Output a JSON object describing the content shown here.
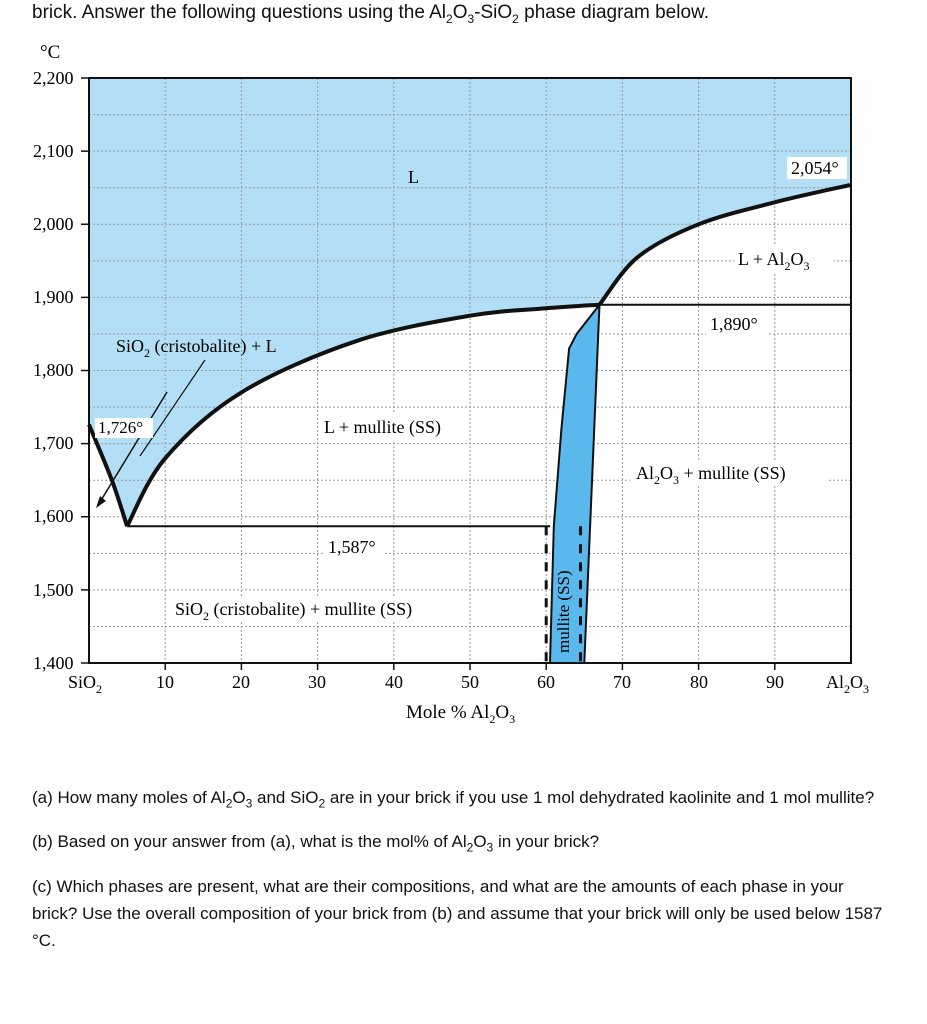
{
  "intro": {
    "before": "brick. Answer the following questions using the Al",
    "s1": "2",
    "mid1": "O",
    "s2": "3",
    "mid2": "-SiO",
    "s3": "2",
    "after": " phase diagram below."
  },
  "chart_data": {
    "type": "phase-diagram",
    "title": "Al2O3-SiO2 phase diagram",
    "y_unit": "°C",
    "y_range": [
      1400,
      2200
    ],
    "y_ticks": [
      "2,200",
      "2,100",
      "2,000",
      "1,900",
      "1,800",
      "1,700",
      "1,600",
      "1,500",
      "1,400"
    ],
    "y_tick_values": [
      2200,
      2100,
      2000,
      1900,
      1800,
      1700,
      1600,
      1500,
      1400
    ],
    "x_range": [
      0,
      100
    ],
    "x_ticks": [
      "10",
      "20",
      "30",
      "40",
      "50",
      "60",
      "70",
      "80",
      "90"
    ],
    "x_tick_values": [
      10,
      20,
      30,
      40,
      50,
      60,
      70,
      80,
      90
    ],
    "x_left_end": {
      "main": "SiO",
      "sub": "2"
    },
    "x_right_end": {
      "a": "Al",
      "s1": "2",
      "b": "O",
      "s2": "3"
    },
    "x_label": {
      "a": "Mole % Al",
      "s1": "2",
      "b": "O",
      "s2": "3"
    },
    "liquid_color": "#b2dff5",
    "mullite_color": "#5ab8ec",
    "invariants": [
      {
        "label": "1,726°",
        "temperature": 1726,
        "composition": 5
      },
      {
        "label": "1,587°",
        "temperature": 1587,
        "composition": 5
      },
      {
        "label": "1,890°",
        "temperature": 1890,
        "composition": 67
      },
      {
        "label": "2,054°",
        "temperature": 2054,
        "composition": 100
      }
    ],
    "phase_labels": {
      "L": "L",
      "l_al2o3": {
        "a": "L + Al",
        "s1": "2",
        "b": "O",
        "s2": "3"
      },
      "sio2_l": {
        "a": "SiO",
        "s1": "2",
        "b": " (cristobalite) + L"
      },
      "l_mullite": "L + mullite (SS)",
      "al2o3_mullite": {
        "a": "Al",
        "s1": "2",
        "b": "O",
        "s2": "3",
        "c": " + mullite (SS)"
      },
      "sio2_mullite": {
        "a": "SiO",
        "s1": "2",
        "b": " (cristobalite) + mullite (SS)"
      },
      "mullite": "mullite (SS)"
    },
    "liquidus_left": [
      [
        0,
        1726
      ],
      [
        3,
        1650
      ],
      [
        5,
        1587
      ]
    ],
    "liquidus_mid": [
      [
        5,
        1587
      ],
      [
        10,
        1680
      ],
      [
        20,
        1770
      ],
      [
        35,
        1840
      ],
      [
        50,
        1875
      ],
      [
        60,
        1885
      ],
      [
        67,
        1890
      ]
    ],
    "liquidus_right": [
      [
        67,
        1890
      ],
      [
        72,
        1955
      ],
      [
        80,
        2000
      ],
      [
        90,
        2030
      ],
      [
        100,
        2054
      ]
    ],
    "mullite_field": [
      [
        64,
        1850
      ],
      [
        67,
        1890
      ],
      [
        65,
        1400
      ],
      [
        60.5,
        1400
      ],
      [
        61,
        1587
      ],
      [
        62,
        1720
      ],
      [
        63,
        1830
      ]
    ]
  },
  "questions": {
    "a": {
      "t1": "(a) How many moles of Al",
      "s1": "2",
      "t2": "O",
      "s2": "3",
      "t3": " and SiO",
      "s3": "2",
      "t4": " are in your brick if you use 1 mol dehydrated kaolinite and 1 mol mullite?"
    },
    "b": {
      "t1": "(b) Based on your answer from (a), what is the mol% of Al",
      "s1": "2",
      "t2": "O",
      "s2": "3",
      "t3": " in your brick?"
    },
    "c": {
      "t1": "(c) Which phases are present, what are their compositions, and what are the amounts of each phase in your brick? Use the overall composition of your brick from (b) and assume that your brick will only be used below 1587 °C."
    }
  }
}
